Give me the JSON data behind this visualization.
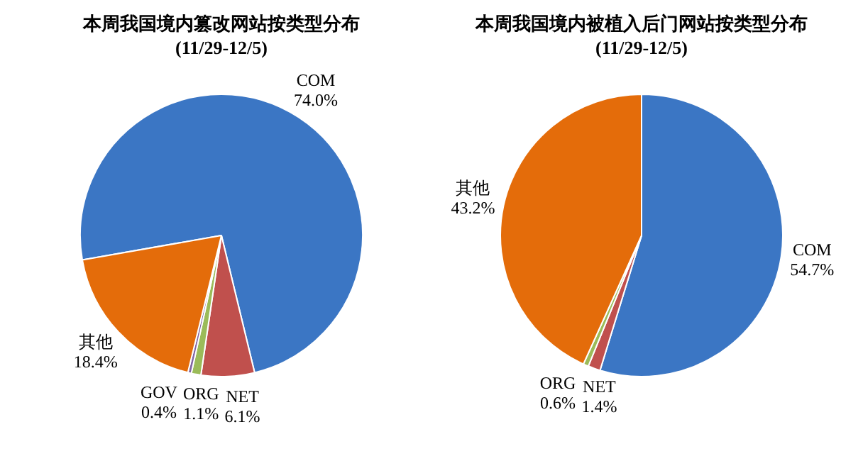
{
  "chart_data": [
    {
      "type": "pie",
      "title": "本周我国境内篡改网站按类型分布",
      "subtitle": "(11/29-12/5)",
      "categories": [
        "COM",
        "NET",
        "ORG",
        "GOV",
        "其他"
      ],
      "values": [
        74.0,
        6.1,
        1.1,
        0.4,
        18.4
      ],
      "colors": [
        "#3b76c4",
        "#c0504d",
        "#9bbb59",
        "#8064a2",
        "#e46c0a"
      ],
      "value_labels": [
        "74.0%",
        "6.1%",
        "1.1%",
        "0.4%",
        "18.4%"
      ]
    },
    {
      "type": "pie",
      "title": "本周我国境内被植入后门网站按类型分布",
      "subtitle": "(11/29-12/5)",
      "categories": [
        "COM",
        "NET",
        "ORG",
        "其他"
      ],
      "values": [
        54.7,
        1.4,
        0.6,
        43.2
      ],
      "colors": [
        "#3b76c4",
        "#c0504d",
        "#9bbb59",
        "#e46c0a"
      ],
      "value_labels": [
        "54.7%",
        "1.4%",
        "0.6%",
        "43.2%"
      ]
    }
  ]
}
